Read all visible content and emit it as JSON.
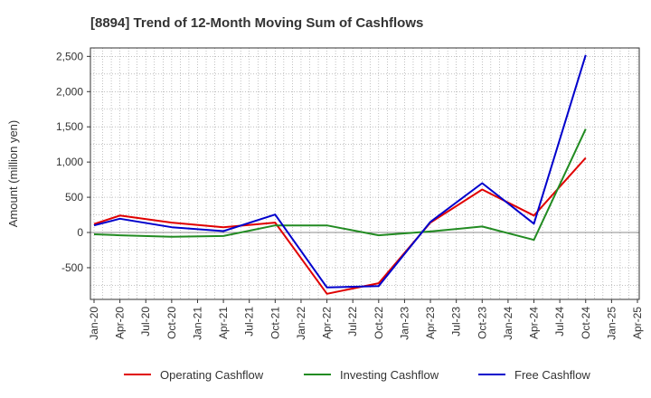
{
  "chart_data": {
    "type": "line",
    "title": "[8894]  Trend of 12-Month Moving Sum of Cashflows",
    "xlabel": "",
    "ylabel": "Amount (million yen)",
    "ylim": [
      -950,
      2620
    ],
    "yticks": [
      -500,
      0,
      500,
      1000,
      1500,
      2000,
      2500
    ],
    "ytick_labels": [
      "-500",
      "0",
      "500",
      "1,000",
      "1,500",
      "2,000",
      "2,500"
    ],
    "x_labels": [
      "Jan-20",
      "Apr-20",
      "Jul-20",
      "Oct-20",
      "Jan-21",
      "Apr-21",
      "Jul-21",
      "Oct-21",
      "Jan-22",
      "Apr-22",
      "Jul-22",
      "Oct-22",
      "Jan-23",
      "Apr-23",
      "Jul-23",
      "Oct-23",
      "Jan-24",
      "Apr-24",
      "Jul-24",
      "Oct-24",
      "Jan-25",
      "Apr-25"
    ],
    "grid": true,
    "legend_position": "bottom",
    "series": [
      {
        "name": "Operating Cashflow",
        "color": "#e00000",
        "x": [
          "Jan-20",
          "Apr-20",
          "Oct-20",
          "Apr-21",
          "Oct-21",
          "Apr-22",
          "Oct-22",
          "Apr-23",
          "Oct-23",
          "Apr-24",
          "Oct-24"
        ],
        "values": [
          120,
          240,
          140,
          75,
          140,
          -870,
          -720,
          140,
          610,
          240,
          1060
        ]
      },
      {
        "name": "Investing Cashflow",
        "color": "#228b22",
        "x": [
          "Jan-20",
          "Apr-20",
          "Oct-20",
          "Apr-21",
          "Oct-21",
          "Apr-22",
          "Oct-22",
          "Apr-23",
          "Oct-23",
          "Apr-24",
          "Oct-24"
        ],
        "values": [
          -25,
          -40,
          -60,
          -50,
          100,
          100,
          -40,
          15,
          85,
          -105,
          1470
        ]
      },
      {
        "name": "Free Cashflow",
        "color": "#0000cc",
        "x": [
          "Jan-20",
          "Apr-20",
          "Oct-20",
          "Apr-21",
          "Oct-21",
          "Apr-22",
          "Oct-22",
          "Apr-23",
          "Oct-23",
          "Apr-24",
          "Oct-24"
        ],
        "values": [
          100,
          195,
          75,
          20,
          255,
          -780,
          -760,
          150,
          700,
          125,
          2520
        ]
      }
    ]
  }
}
